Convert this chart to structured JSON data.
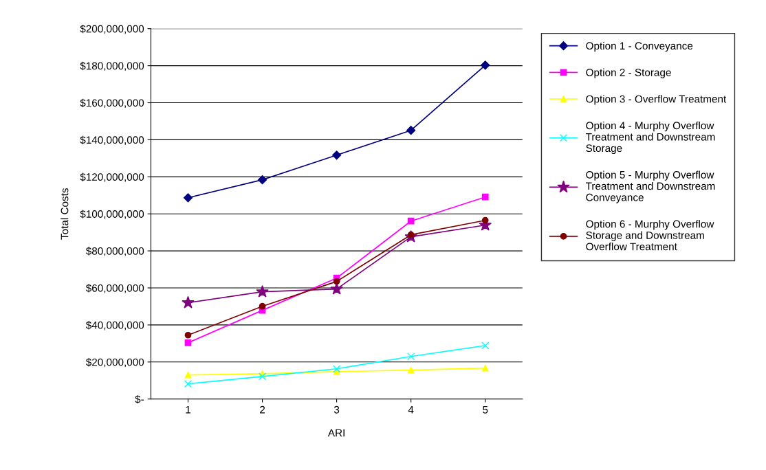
{
  "chart_data": {
    "type": "line",
    "xlabel": "ARI",
    "ylabel": "Total Costs",
    "categories": [
      "1",
      "2",
      "3",
      "4",
      "5"
    ],
    "ylim": [
      0,
      200000000
    ],
    "yticks": [
      {
        "value": 0,
        "label": "$-"
      },
      {
        "value": 20000000,
        "label": "$20,000,000"
      },
      {
        "value": 40000000,
        "label": "$40,000,000"
      },
      {
        "value": 60000000,
        "label": "$60,000,000"
      },
      {
        "value": 80000000,
        "label": "$80,000,000"
      },
      {
        "value": 100000000,
        "label": "$100,000,000"
      },
      {
        "value": 120000000,
        "label": "$120,000,000"
      },
      {
        "value": 140000000,
        "label": "$140,000,000"
      },
      {
        "value": 160000000,
        "label": "$160,000,000"
      },
      {
        "value": 180000000,
        "label": "$180,000,000"
      },
      {
        "value": 200000000,
        "label": "$200,000,000"
      }
    ],
    "grid": "y",
    "legend": "right",
    "line_style": "solid",
    "series": [
      {
        "name": "Option 1 - Conveyance",
        "color": "#000080",
        "marker": "diamond",
        "values": [
          108700000,
          118400000,
          131700000,
          145100000,
          180300000
        ]
      },
      {
        "name": "Option 2 - Storage",
        "color": "#ff00ff",
        "marker": "square",
        "values": [
          30400000,
          47900000,
          65300000,
          96100000,
          109100000
        ]
      },
      {
        "name": "Option 3 - Overflow Treatment",
        "color": "#ffff00",
        "marker": "triangle",
        "values": [
          13000000,
          13700000,
          14800000,
          15600000,
          16700000
        ]
      },
      {
        "name": "Option 4 - Murphy Overflow Treatment and Downstream Storage",
        "color": "#00ffff",
        "marker": "cross",
        "values": [
          8200000,
          12200000,
          16300000,
          23000000,
          28900000
        ]
      },
      {
        "name": "Option 5 - Murphy Overflow Treatment and Downstream Conveyance",
        "color": "#800080",
        "marker": "star",
        "values": [
          52000000,
          57900000,
          59400000,
          87600000,
          93900000
        ]
      },
      {
        "name": "Option 6 - Murphy Overflow Storage and Downstream Overflow Treatment",
        "color": "#800000",
        "marker": "circle",
        "values": [
          34500000,
          50100000,
          63500000,
          88700000,
          96500000
        ]
      }
    ]
  }
}
